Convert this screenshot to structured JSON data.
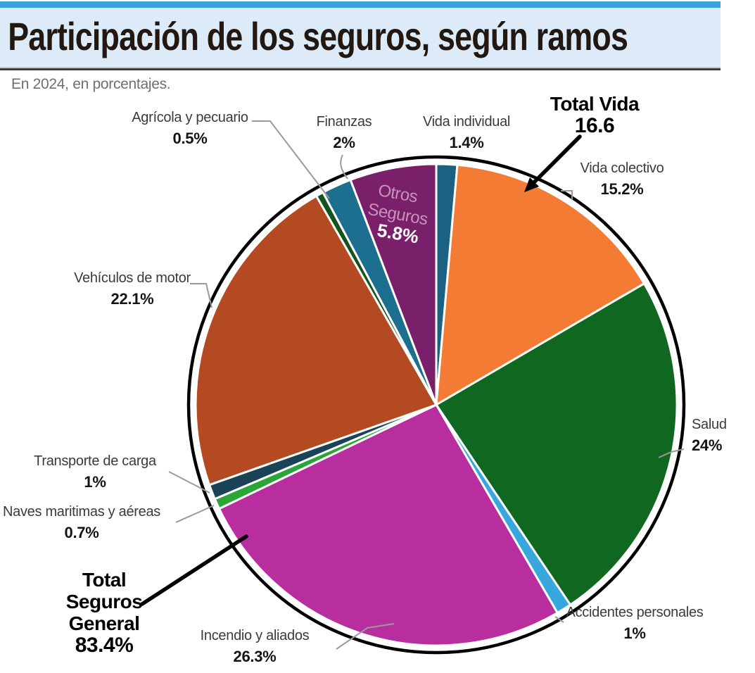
{
  "title": "Participación de los seguros, según ramos",
  "subtitle": "En 2024, en porcentajes.",
  "header": {
    "strip_color": "#38A2DE",
    "band_color": "#DCEBF7"
  },
  "chart_data": {
    "type": "pie",
    "unit": "percent",
    "start_angle_deg": 0,
    "direction": "clockwise",
    "outline_color": "#000000",
    "leader_line_color": "#9a9a9a",
    "slices": [
      {
        "id": "vida-individual",
        "label": "Vida individual",
        "value": 1.4,
        "pct_label": "1.4%",
        "color": "#1B6184"
      },
      {
        "id": "vida-colectivo",
        "label": "Vida colectivo",
        "value": 15.2,
        "pct_label": "15.2%",
        "color": "#F47B33"
      },
      {
        "id": "salud",
        "label": "Salud",
        "value": 24,
        "pct_label": "24%",
        "color": "#10671F"
      },
      {
        "id": "accidentes-personales",
        "label": "Accidentes personales",
        "value": 1,
        "pct_label": "1%",
        "color": "#38A8DC"
      },
      {
        "id": "incendio-y-aliados",
        "label": "Incendio y aliados",
        "value": 26.3,
        "pct_label": "26.3%",
        "color": "#B92E9E"
      },
      {
        "id": "naves-maritimas",
        "label": "Naves maritimas y aéreas",
        "value": 0.7,
        "pct_label": "0.7%",
        "color": "#2BA636"
      },
      {
        "id": "transporte-de-carga",
        "label": "Transporte de carga",
        "value": 1,
        "pct_label": "1%",
        "color": "#1B4357"
      },
      {
        "id": "vehiculos-de-motor",
        "label": "Vehículos de motor",
        "value": 22.1,
        "pct_label": "22.1%",
        "color": "#B44A22"
      },
      {
        "id": "agricola-y-pecuario",
        "label": "Agrícola y pecuario",
        "value": 0.5,
        "pct_label": "0.5%",
        "color": "#14521F"
      },
      {
        "id": "finanzas",
        "label": "Finanzas",
        "value": 2,
        "pct_label": "2%",
        "color": "#1D6F90"
      },
      {
        "id": "otros-seguros",
        "label": "Otros Seguros",
        "value": 5.8,
        "pct_label": "5.8%",
        "color": "#7A1F69",
        "label_inside": true,
        "label_line1": "Otros",
        "label_line2": "Seguros"
      }
    ],
    "annotations": {
      "total_vida": {
        "label": "Total Vida",
        "value": "16.6"
      },
      "total_general": {
        "line1": "Total",
        "line2": "Seguros",
        "line3": "General",
        "value": "83.4%"
      }
    }
  }
}
